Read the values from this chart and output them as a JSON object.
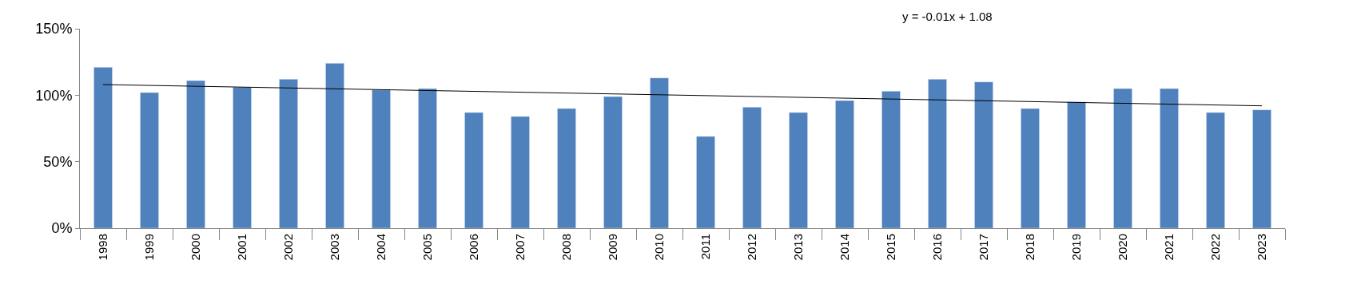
{
  "chart_data": {
    "type": "bar",
    "categories": [
      "1998",
      "1999",
      "2000",
      "2001",
      "2002",
      "2003",
      "2004",
      "2005",
      "2006",
      "2007",
      "2008",
      "2009",
      "2010",
      "2011",
      "2012",
      "2013",
      "2014",
      "2015",
      "2016",
      "2017",
      "2018",
      "2019",
      "2020",
      "2021",
      "2022",
      "2023"
    ],
    "series": [
      {
        "color": "#4f81bd",
        "values": [
          121,
          102,
          111,
          106,
          112,
          124,
          104,
          105,
          87,
          84,
          90,
          99,
          113,
          69,
          91,
          87,
          96,
          103,
          112,
          110,
          90,
          95,
          105,
          105,
          87,
          89
        ]
      },
      {
        "type": "line",
        "color": "#000000",
        "values": [
          108,
          null,
          null,
          null,
          null,
          null,
          null,
          null,
          null,
          null,
          null,
          null,
          null,
          null,
          null,
          null,
          null,
          null,
          null,
          null,
          null,
          null,
          null,
          null,
          null,
          92
        ]
      }
    ],
    "ylim": [
      0,
      150
    ],
    "yticks": [
      {
        "value": 0,
        "label": "0%"
      },
      {
        "value": 50,
        "label": "50%"
      },
      {
        "value": 100,
        "label": "100%"
      },
      {
        "value": 150,
        "label": "150%"
      }
    ],
    "annotations": [
      "y = -0.01x + 1.08"
    ],
    "grid": false
  }
}
